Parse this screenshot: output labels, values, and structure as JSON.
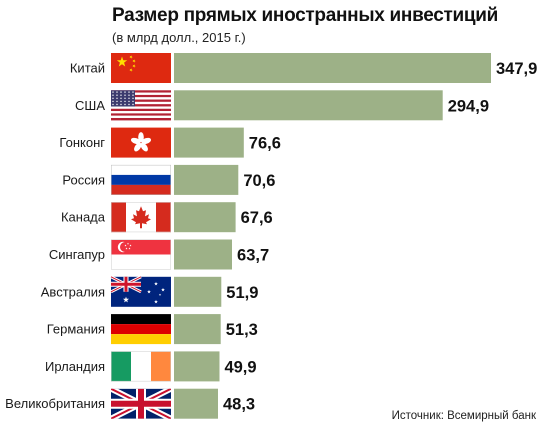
{
  "title": "Размер прямых иностранных инвестиций",
  "subtitle": "(в млрд долл., 2015 г.)",
  "source": "Источник: Всемирный банк",
  "colors": {
    "bar": "#9db187"
  },
  "chart_data": {
    "type": "bar",
    "orientation": "horizontal",
    "title": "Размер прямых иностранных инвестиций",
    "subtitle": "(в млрд долл., 2015 г.)",
    "categories": [
      "Китай",
      "США",
      "Гонконг",
      "Россия",
      "Канада",
      "Сингапур",
      "Австралия",
      "Германия",
      "Ирландия",
      "Великобритания"
    ],
    "values": [
      347.9,
      294.9,
      76.6,
      70.6,
      67.6,
      63.7,
      51.9,
      51.3,
      49.9,
      48.3
    ],
    "value_labels": [
      "347,9",
      "294,9",
      "76,6",
      "70,6",
      "67,6",
      "63,7",
      "51,9",
      "51,3",
      "49,9",
      "48,3"
    ],
    "flags": [
      "china-flag-icon",
      "usa-flag-icon",
      "hongkong-flag-icon",
      "russia-flag-icon",
      "canada-flag-icon",
      "singapore-flag-icon",
      "australia-flag-icon",
      "germany-flag-icon",
      "ireland-flag-icon",
      "uk-flag-icon"
    ],
    "xlim": [
      0,
      347.9
    ],
    "grid": false,
    "legend": "none"
  }
}
